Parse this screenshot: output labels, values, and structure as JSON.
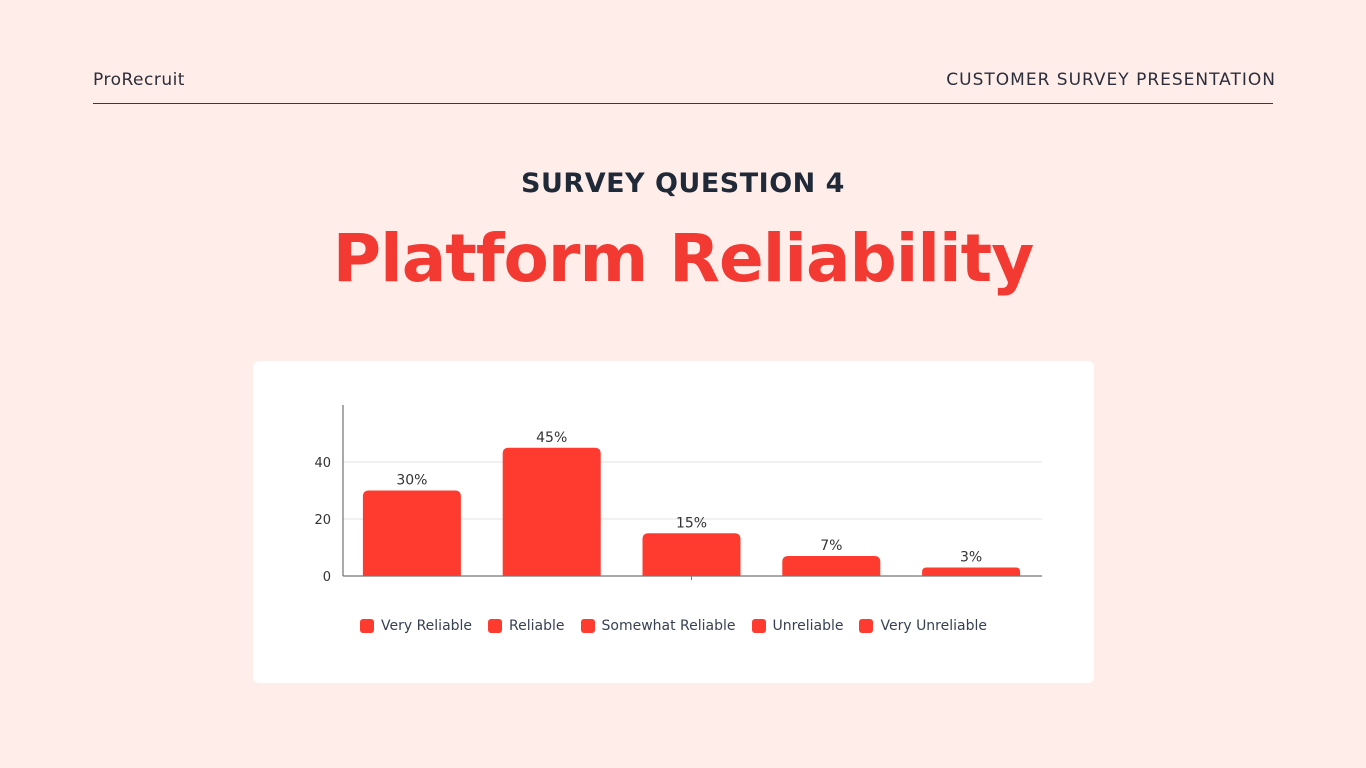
{
  "header": {
    "brand": "ProRecruit",
    "deck_title": "CUSTOMER SURVEY PRESENTATION"
  },
  "slide": {
    "subtitle": "SURVEY QUESTION 4",
    "title": "Platform Reliability"
  },
  "colors": {
    "background": "#FFEDE9",
    "accent": "#F23A33",
    "bar": "#FF3B30",
    "text_dark": "#1F2937"
  },
  "chart_data": {
    "type": "bar",
    "categories": [
      "Very Reliable",
      "Reliable",
      "Somewhat Reliable",
      "Unreliable",
      "Very Unreliable"
    ],
    "values": [
      30,
      45,
      15,
      7,
      3
    ],
    "data_labels": [
      "30%",
      "45%",
      "15%",
      "7%",
      "3%"
    ],
    "y_ticks": [
      0,
      20,
      40
    ],
    "ylim": [
      0,
      60
    ],
    "grid": true,
    "legend": "bottom",
    "legend_entries": [
      "Very Reliable",
      "Reliable",
      "Somewhat Reliable",
      "Unreliable",
      "Very Unreliable"
    ]
  }
}
